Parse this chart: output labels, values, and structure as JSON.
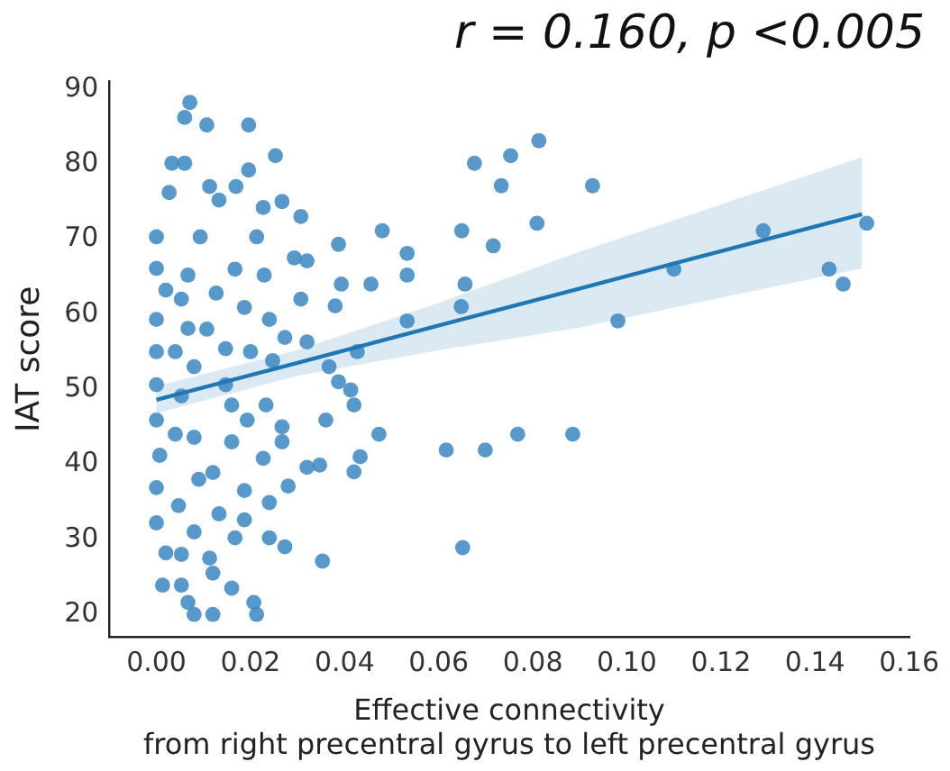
{
  "chart_data": {
    "type": "scatter",
    "title": "r = 0.160, p <0.005",
    "xlabel": "Effective connectivity\nfrom right precentral gyrus to left precentral gyrus",
    "ylabel": "IAT score",
    "xlim": [
      -0.01,
      0.16
    ],
    "xticks": [
      {
        "value": 0,
        "label": "0.00"
      },
      {
        "value": 0.02,
        "label": "0.02"
      },
      {
        "value": 0.04,
        "label": "0.04"
      },
      {
        "value": 0.06,
        "label": "0.06"
      },
      {
        "value": 0.08,
        "label": "0.08"
      },
      {
        "value": 0.1,
        "label": "0.10"
      },
      {
        "value": 0.12,
        "label": "0.12"
      },
      {
        "value": 0.14,
        "label": "0.14"
      },
      {
        "value": 0.16,
        "label": "0.16"
      }
    ],
    "ylim": [
      17,
      91
    ],
    "yticks": [
      20,
      30,
      40,
      50,
      60,
      70,
      80,
      90
    ],
    "grid": false,
    "legend": false,
    "marker": "circle",
    "series": [
      {
        "color": "#3a87c2",
        "x": [
          0.0676,
          0.0753,
          0.0813,
          0.0733,
          0.0927,
          0.0649,
          0.0809,
          0.0716,
          0.0656,
          0.0648,
          0.0981,
          0.11,
          0.129,
          0.143,
          0.146,
          0.151,
          0.0616,
          0.0699,
          0.0768,
          0.0885,
          0.0651,
          0.0071,
          0.006,
          0.0107,
          0.0196,
          0.0253,
          0.0033,
          0.006,
          0.0196,
          0.0113,
          0.0169,
          0.0027,
          0.0267,
          0.0133,
          0.0227,
          0.0307,
          0.048,
          0.0,
          0.0093,
          0.0213,
          0.0387,
          0.0533,
          0.0293,
          0.032,
          0.0,
          0.0067,
          0.0167,
          0.0229,
          0.0533,
          0.0393,
          0.0456,
          0.002,
          0.0127,
          0.0307,
          0.038,
          0.0187,
          0.0,
          0.024,
          0.0533,
          0.0067,
          0.0273,
          0.032,
          0.0,
          0.004,
          0.0147,
          0.02,
          0.0427,
          0.008,
          0.0247,
          0.0367,
          0.0387,
          0.0,
          0.0147,
          0.0413,
          0.042,
          0.0053,
          0.0233,
          0.0,
          0.016,
          0.0193,
          0.036,
          0.0473,
          0.0267,
          0.0267,
          0.008,
          0.016,
          0.0007,
          0.0227,
          0.0433,
          0.032,
          0.0347,
          0.042,
          0.012,
          0.0,
          0.028,
          0.0187,
          0.024,
          0.0047,
          0.0133,
          0.0,
          0.0187,
          0.008,
          0.0167,
          0.024,
          0.0273,
          0.0353,
          0.002,
          0.0113,
          0.0013,
          0.0053,
          0.012,
          0.016,
          0.0067,
          0.012,
          0.0207,
          0.0213,
          0.008,
          0.0053,
          0.0107,
          0.004,
          0.009,
          0.0053
        ],
        "values": [
          80.1,
          81.1,
          83.1,
          77.1,
          77.1,
          71.1,
          72.1,
          69.1,
          64.0,
          61.0,
          59.1,
          66.0,
          71.1,
          66.0,
          64.0,
          72.1,
          41.9,
          41.9,
          44.0,
          44.0,
          28.9,
          88.2,
          86.2,
          85.2,
          85.2,
          81.1,
          80.1,
          80.1,
          79.2,
          77.0,
          77.0,
          76.2,
          75.0,
          75.2,
          74.2,
          73.0,
          71.1,
          70.3,
          70.3,
          70.3,
          69.3,
          68.1,
          67.5,
          67.1,
          66.1,
          65.2,
          66.0,
          65.2,
          65.2,
          64.0,
          64.0,
          63.2,
          62.8,
          62.0,
          61.1,
          60.9,
          59.3,
          59.3,
          59.1,
          58.1,
          56.9,
          56.3,
          55.0,
          55.0,
          55.4,
          55.0,
          55.0,
          53.0,
          53.8,
          53.0,
          51.0,
          50.6,
          50.6,
          49.9,
          47.9,
          49.1,
          47.9,
          45.9,
          47.9,
          45.9,
          45.9,
          44.0,
          45.0,
          43.0,
          43.6,
          43.0,
          41.2,
          40.8,
          41.0,
          39.6,
          39.9,
          39.0,
          38.9,
          36.9,
          37.1,
          36.5,
          34.9,
          34.5,
          33.4,
          32.2,
          32.6,
          31.0,
          30.2,
          30.2,
          29.0,
          27.1,
          28.2,
          27.5,
          23.9,
          23.9,
          25.5,
          23.5,
          21.6,
          20.0,
          21.6,
          20.0,
          20.0,
          62.0,
          58.0,
          44.0,
          38.0,
          28.0
        ]
      },
      {
        "type": "line",
        "color": "#1f77b4",
        "marker": "none",
        "x": [
          0,
          0.03,
          0.06,
          0.09,
          0.12,
          0.15
        ],
        "values": [
          48.6,
          53.5,
          58.5,
          63.4,
          68.4,
          73.3
        ],
        "lower": [
          46.8,
          51.8,
          55.2,
          58.2,
          62.2,
          66.1
        ],
        "upper": [
          50.4,
          55.2,
          61.5,
          68.3,
          74.6,
          80.9
        ]
      }
    ]
  }
}
